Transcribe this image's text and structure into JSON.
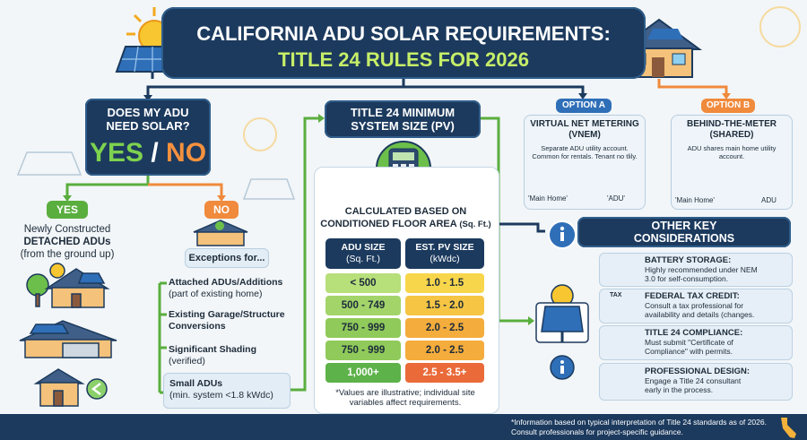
{
  "header": {
    "title_line1": "CALIFORNIA ADU SOLAR REQUIREMENTS:",
    "title_line2": "TITLE 24 RULES FOR 2026"
  },
  "question": {
    "title": "DOES MY ADU NEED SOLAR?",
    "yes": "YES",
    "slash": "/",
    "no": "NO"
  },
  "yes_branch": {
    "label": "YES",
    "lines": [
      "Newly Constructed",
      "DETACHED ADUs",
      "(from the ground up)"
    ]
  },
  "no_branch": {
    "label": "NO",
    "heading": "Exceptions for...",
    "items": [
      {
        "title": "Attached ADUs/Additions",
        "detail": "(part of existing home)"
      },
      {
        "title": "Existing Garage/Structure Conversions"
      },
      {
        "title": "Significant Shading",
        "detail": "(verified)"
      },
      {
        "title": "Small ADUs",
        "detail": "(min. system <1.8 kWdc)"
      }
    ]
  },
  "system_size": {
    "title": "TITLE 24 MINIMUM SYSTEM SIZE (PV)",
    "subtitle": "CALCULATED BASED ON CONDITIONED FLOOR AREA",
    "subtitle_unit": "(Sq. Ft.)",
    "table": {
      "columns": [
        {
          "label": "ADU SIZE",
          "unit": "(Sq. Ft.)"
        },
        {
          "label": "EST. PV SIZE",
          "unit": "(kWdc)"
        }
      ],
      "rows": [
        [
          "< 500",
          "1.0 - 1.5"
        ],
        [
          "500 - 749",
          "1.5 - 2.0"
        ],
        [
          "750 - 999",
          "2.0 - 2.5"
        ],
        [
          "750 - 999",
          "2.0 - 2.5"
        ],
        [
          "1,000+",
          "2.5 - 3.5+"
        ]
      ]
    },
    "note": "*Values are illustrative; individual site variables affect requirements."
  },
  "options": [
    {
      "tag": "OPTION A",
      "title": "VIRTUAL NET METERING (VNEM)",
      "description": "Separate ADU utility account. Common for rentals. Tenant no tlily.",
      "labels": [
        "'Main Home'",
        "'ADU'"
      ]
    },
    {
      "tag": "OPTION B",
      "title": "BEHIND-THE-METER (SHARED)",
      "description": "ADU shares main home utility account.",
      "labels": [
        "'Main Home'",
        "ADU"
      ]
    }
  ],
  "considerations": {
    "title": "OTHER KEY CONSIDERATIONS",
    "items": [
      {
        "title": "BATTERY STORAGE:",
        "text": "Highly recommended under NEM 3.0 for self-consumption."
      },
      {
        "title": "FEDERAL TAX CREDIT:",
        "text": "Consult a tax professional for availability and details (changes.",
        "icon_label": "TAX"
      },
      {
        "title": "TITLE 24 COMPLIANCE:",
        "text": "Must submit \"Certificate of Compliance\" with permits."
      },
      {
        "title": "PROFESSIONAL DESIGN:",
        "text": "Engage a Title 24 consultant early in the process."
      }
    ]
  },
  "footer": "*Information based on typical interpretation of Title 24 standards as of 2026. Consult professionals for project-specific guidance."
}
